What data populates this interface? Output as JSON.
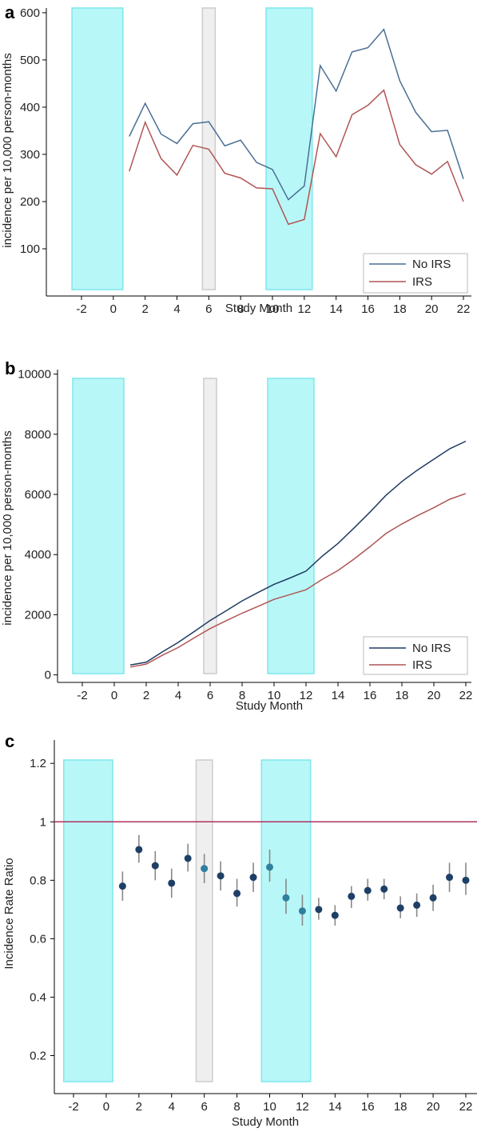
{
  "colors": {
    "no_irs": "#4a6f94",
    "irs": "#b05555",
    "cumulative_no_irs": "#1f3b63",
    "cumulative_irs": "#b05555",
    "reference_line": "#b03060",
    "point": "#1e3f66",
    "point_light": "#2f7fa0",
    "error_bar": "#888888",
    "band_cyan": "#b8f7f7",
    "band_cyan_edge": "#7fe6ea",
    "band_grey": "#efefef",
    "band_grey_edge": "#cccccc"
  },
  "chart_data": [
    {
      "panel": "a",
      "type": "line",
      "xlabel": "Study Month",
      "ylabel": "incidence per 10,000 person-months",
      "xlim": [
        -3,
        22.5
      ],
      "ylim": [
        0,
        610
      ],
      "xticks": [
        -2,
        0,
        2,
        4,
        6,
        8,
        10,
        12,
        14,
        16,
        18,
        20,
        22
      ],
      "yticks": [
        100,
        200,
        300,
        400,
        500,
        600
      ],
      "bands": [
        {
          "from": -2.6,
          "to": 0.6,
          "style": "cyan"
        },
        {
          "from": 5.6,
          "to": 6.4,
          "style": "grey"
        },
        {
          "from": 9.6,
          "to": 12.5,
          "style": "cyan"
        }
      ],
      "legend": {
        "position": "bottom-right"
      },
      "x": [
        1,
        2,
        3,
        4,
        5,
        6,
        7,
        8,
        9,
        10,
        11,
        12,
        13,
        14,
        15,
        16,
        17,
        18,
        19,
        20,
        21,
        22
      ],
      "series": [
        {
          "name": "No IRS",
          "color_key": "no_irs",
          "values": [
            338,
            408,
            343,
            323,
            365,
            369,
            318,
            330,
            283,
            268,
            204,
            233,
            488,
            434,
            517,
            526,
            565,
            456,
            389,
            348,
            351,
            248
          ]
        },
        {
          "name": "IRS",
          "color_key": "irs",
          "values": [
            264,
            368,
            291,
            256,
            319,
            311,
            260,
            250,
            229,
            227,
            152,
            162,
            344,
            295,
            384,
            404,
            436,
            321,
            278,
            258,
            285,
            200
          ]
        }
      ]
    },
    {
      "panel": "b",
      "type": "line",
      "xlabel": "Study Month",
      "ylabel": "incidence per 10,000 person-months",
      "xlim": [
        -3,
        22.5
      ],
      "ylim": [
        -250,
        10150
      ],
      "xticks": [
        -2,
        0,
        2,
        4,
        6,
        8,
        10,
        12,
        14,
        16,
        18,
        20,
        22
      ],
      "yticks": [
        0,
        2000,
        4000,
        6000,
        8000,
        10000
      ],
      "bands": [
        {
          "from": -2.6,
          "to": 0.6,
          "style": "cyan"
        },
        {
          "from": 5.6,
          "to": 6.4,
          "style": "grey"
        },
        {
          "from": 9.6,
          "to": 12.5,
          "style": "cyan"
        }
      ],
      "legend": {
        "position": "bottom-right"
      },
      "x": [
        1,
        2,
        3,
        4,
        5,
        6,
        7,
        8,
        9,
        10,
        11,
        12,
        13,
        14,
        15,
        16,
        17,
        18,
        19,
        20,
        21,
        22
      ],
      "series": [
        {
          "name": "No IRS",
          "color_key": "cumulative_no_irs",
          "values": [
            330,
            420,
            760,
            1080,
            1440,
            1810,
            2130,
            2460,
            2740,
            3010,
            3220,
            3450,
            3940,
            4370,
            4880,
            5410,
            5970,
            6430,
            6820,
            7170,
            7520,
            7770
          ]
        },
        {
          "name": "IRS",
          "color_key": "cumulative_irs",
          "values": [
            260,
            360,
            650,
            910,
            1230,
            1540,
            1800,
            2050,
            2280,
            2510,
            2670,
            2830,
            3170,
            3470,
            3850,
            4260,
            4700,
            5020,
            5300,
            5560,
            5840,
            6030
          ]
        }
      ]
    },
    {
      "panel": "c",
      "type": "scatter",
      "xlabel": "Study Month",
      "ylabel": "Incidence Rate Ratio",
      "xlim": [
        -3,
        22.5
      ],
      "ylim": [
        0.07,
        1.28
      ],
      "xticks": [
        -2,
        0,
        2,
        4,
        6,
        8,
        10,
        12,
        14,
        16,
        18,
        20,
        22
      ],
      "yticks": [
        0.2,
        0.4,
        0.6,
        0.8,
        1.0,
        1.2
      ],
      "reference_line": 1.0,
      "bands": [
        {
          "from": -2.6,
          "to": 0.4,
          "style": "cyan"
        },
        {
          "from": 5.5,
          "to": 6.5,
          "style": "grey"
        },
        {
          "from": 9.5,
          "to": 12.5,
          "style": "cyan"
        }
      ],
      "points": [
        {
          "x": 1,
          "y": 0.78,
          "low": 0.73,
          "high": 0.83
        },
        {
          "x": 2,
          "y": 0.905,
          "low": 0.86,
          "high": 0.955
        },
        {
          "x": 3,
          "y": 0.85,
          "low": 0.8,
          "high": 0.9
        },
        {
          "x": 4,
          "y": 0.79,
          "low": 0.74,
          "high": 0.84
        },
        {
          "x": 5,
          "y": 0.875,
          "low": 0.83,
          "high": 0.925
        },
        {
          "x": 6,
          "y": 0.84,
          "low": 0.79,
          "high": 0.89,
          "light": true
        },
        {
          "x": 7,
          "y": 0.815,
          "low": 0.765,
          "high": 0.865
        },
        {
          "x": 8,
          "y": 0.755,
          "low": 0.71,
          "high": 0.805
        },
        {
          "x": 9,
          "y": 0.81,
          "low": 0.76,
          "high": 0.86
        },
        {
          "x": 10,
          "y": 0.845,
          "low": 0.795,
          "high": 0.905,
          "light": true
        },
        {
          "x": 11,
          "y": 0.74,
          "low": 0.685,
          "high": 0.805,
          "light": true
        },
        {
          "x": 12,
          "y": 0.695,
          "low": 0.645,
          "high": 0.75,
          "light": true
        },
        {
          "x": 13,
          "y": 0.7,
          "low": 0.665,
          "high": 0.74
        },
        {
          "x": 14,
          "y": 0.68,
          "low": 0.645,
          "high": 0.715
        },
        {
          "x": 15,
          "y": 0.745,
          "low": 0.705,
          "high": 0.78
        },
        {
          "x": 16,
          "y": 0.765,
          "low": 0.73,
          "high": 0.805
        },
        {
          "x": 17,
          "y": 0.77,
          "low": 0.735,
          "high": 0.805
        },
        {
          "x": 18,
          "y": 0.705,
          "low": 0.67,
          "high": 0.745
        },
        {
          "x": 19,
          "y": 0.715,
          "low": 0.675,
          "high": 0.755
        },
        {
          "x": 20,
          "y": 0.74,
          "low": 0.695,
          "high": 0.785
        },
        {
          "x": 21,
          "y": 0.81,
          "low": 0.76,
          "high": 0.86
        },
        {
          "x": 22,
          "y": 0.8,
          "low": 0.75,
          "high": 0.86
        }
      ]
    }
  ]
}
